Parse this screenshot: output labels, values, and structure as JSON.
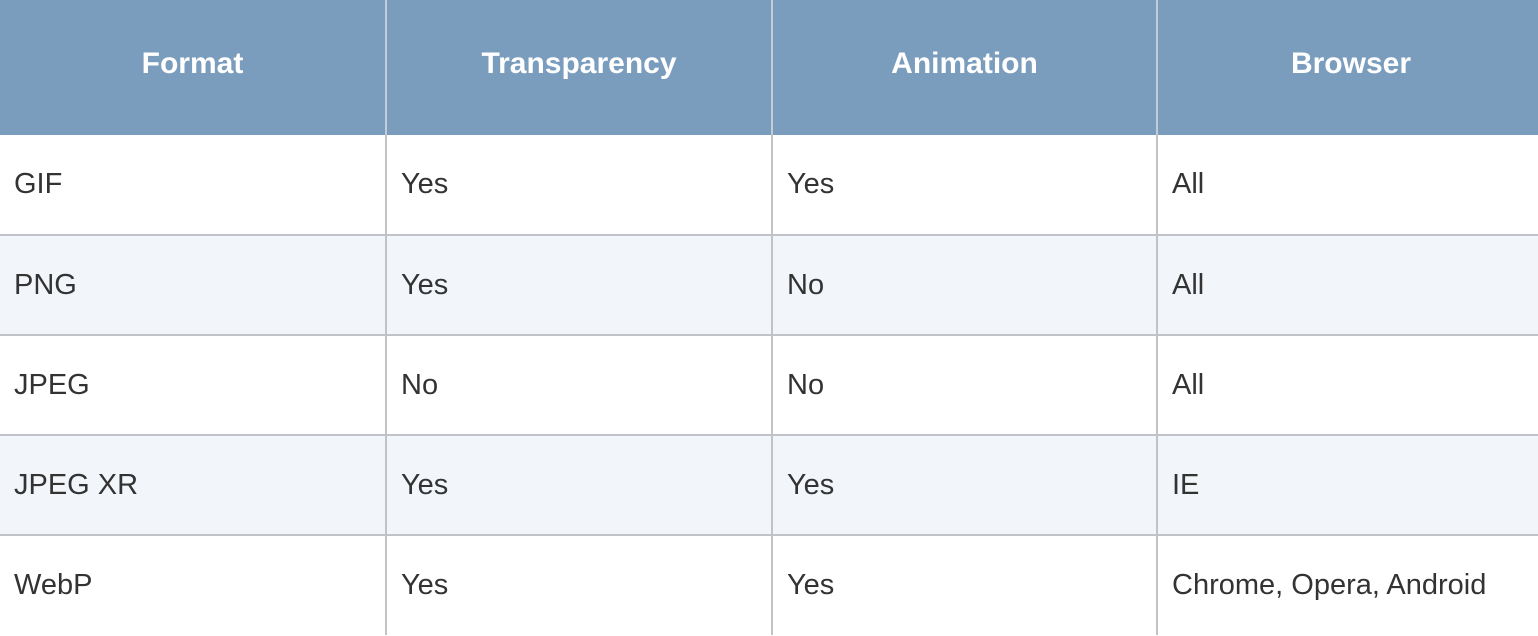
{
  "table": {
    "headers": [
      "Format",
      "Transparency",
      "Animation",
      "Browser"
    ],
    "rows": [
      [
        "GIF",
        "Yes",
        "Yes",
        "All"
      ],
      [
        "PNG",
        "Yes",
        "No",
        "All"
      ],
      [
        "JPEG",
        "No",
        "No",
        "All"
      ],
      [
        "JPEG XR",
        "Yes",
        "Yes",
        "IE"
      ],
      [
        "WebP",
        "Yes",
        "Yes",
        "Chrome, Opera, Android"
      ]
    ],
    "colors": {
      "header_bg": "#7b9dbd",
      "header_text": "#ffffff",
      "row_alt_bg": "#f2f5f9",
      "border": "#c0c4c9"
    }
  }
}
